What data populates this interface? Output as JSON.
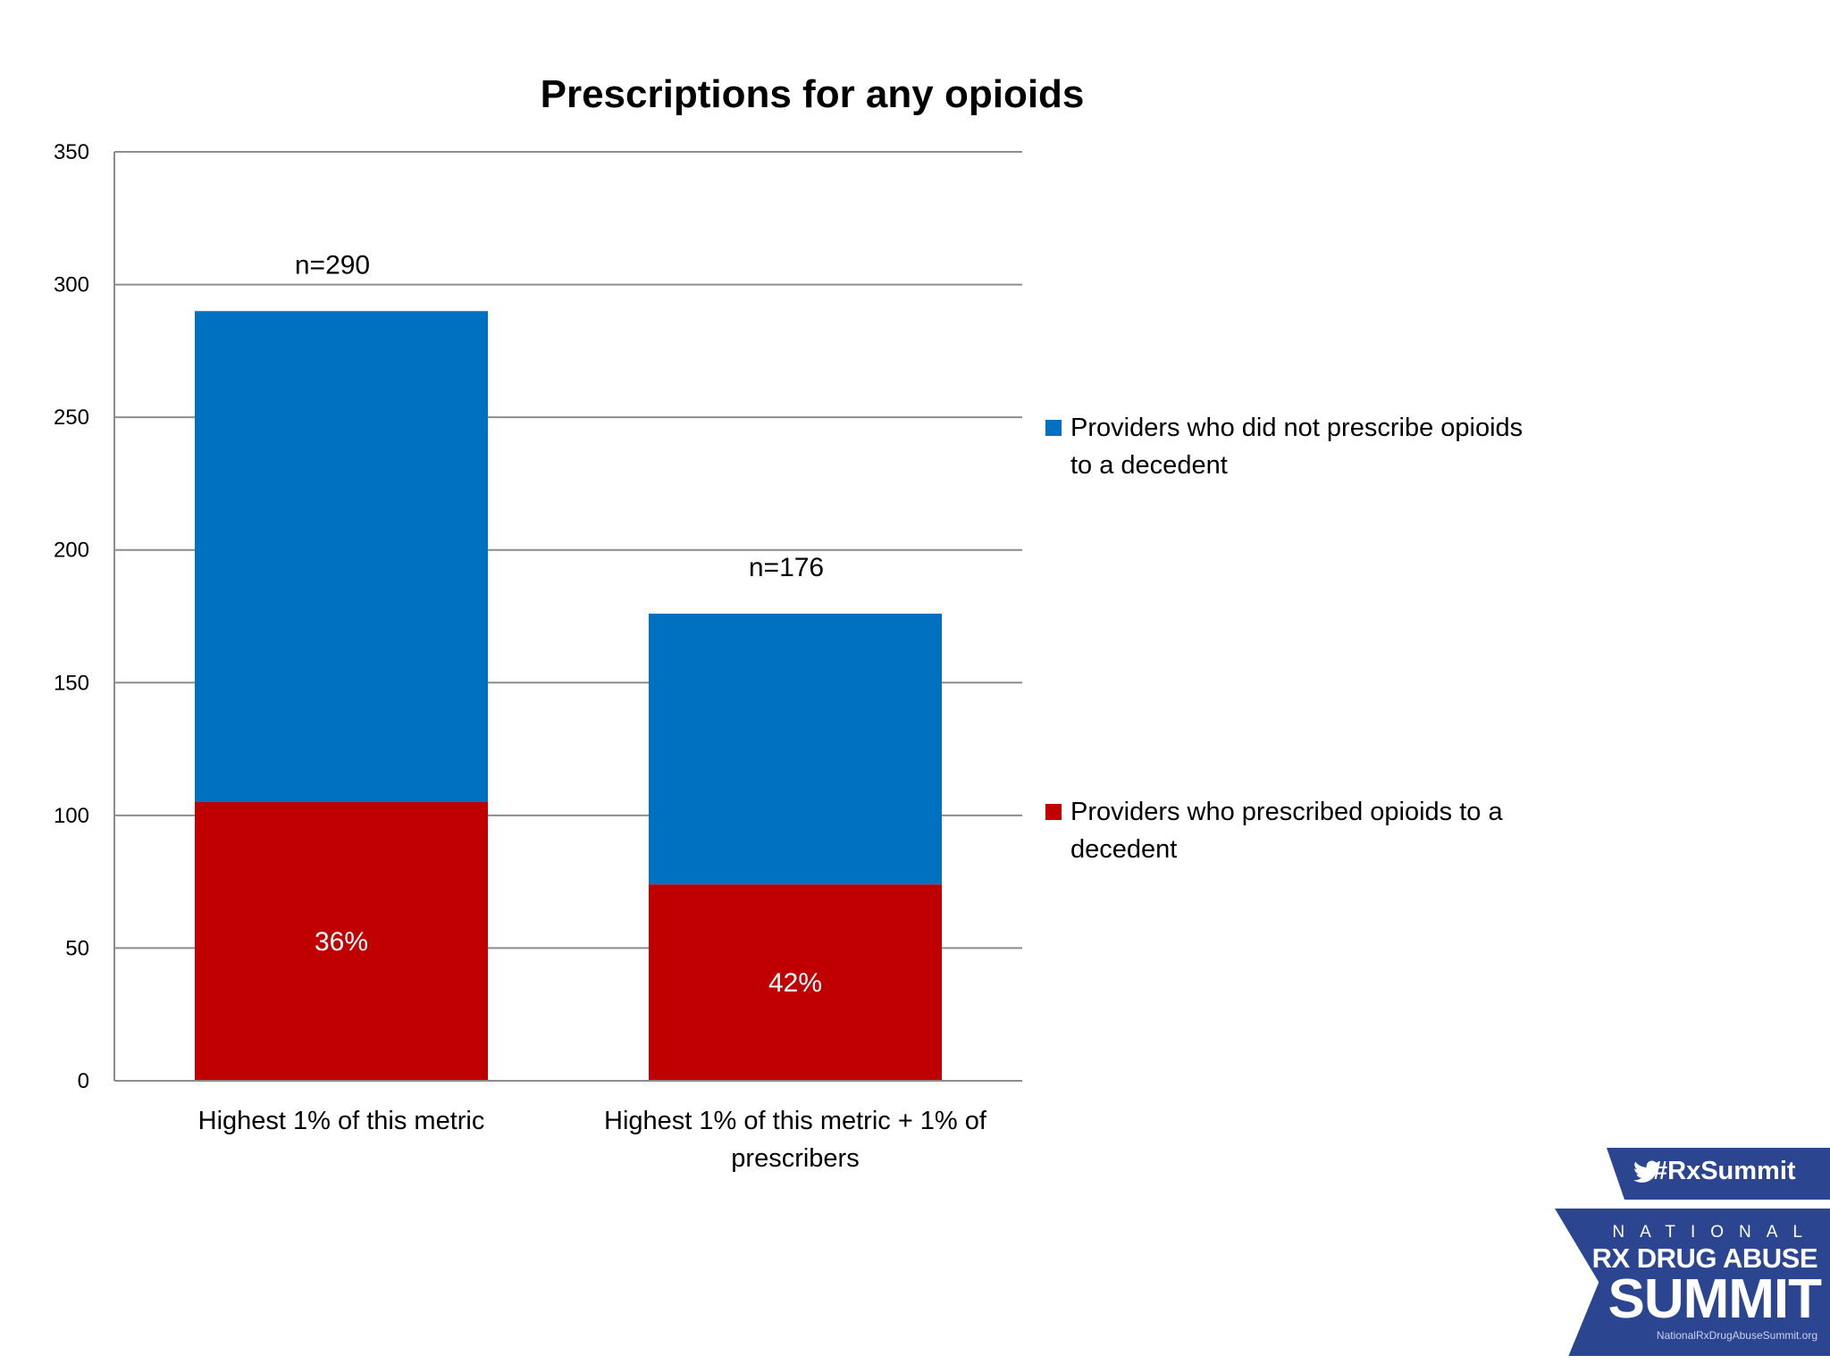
{
  "chart_data": {
    "type": "bar",
    "stacked": true,
    "title": "Prescriptions for any opioids",
    "xlabel": "",
    "ylabel": "",
    "ylim": [
      0,
      350
    ],
    "yticks": [
      0,
      50,
      100,
      150,
      200,
      250,
      300,
      350
    ],
    "grid": true,
    "legend_position": "right",
    "categories": [
      [
        "Highest 1% of this metric"
      ],
      [
        "Highest 1% of this metric + 1% of",
        "prescribers"
      ]
    ],
    "series": [
      {
        "name": "Providers who prescribed opioids to a decedent",
        "legend_lines": [
          "Providers who prescribed opioids to a",
          "decedent"
        ],
        "color": "#c00000",
        "values": [
          105,
          74
        ],
        "data_labels": [
          "36%",
          "42%"
        ]
      },
      {
        "name": "Providers who did not prescribe opioids to a decedent",
        "legend_lines": [
          "Providers who did not prescribe opioids",
          "to a decedent"
        ],
        "color": "#0070c0",
        "values": [
          185,
          102
        ]
      }
    ],
    "totals": [
      290,
      176
    ],
    "total_labels": [
      "n=290",
      "n=176"
    ]
  },
  "logo": {
    "hashtag": "#RxSummit",
    "national": "NATIONAL",
    "line1": "RX DRUG ABUSE",
    "line2": "SUMMIT",
    "url": "NationalRxDrugAbuseSummit.org",
    "color": "#2b4590"
  }
}
